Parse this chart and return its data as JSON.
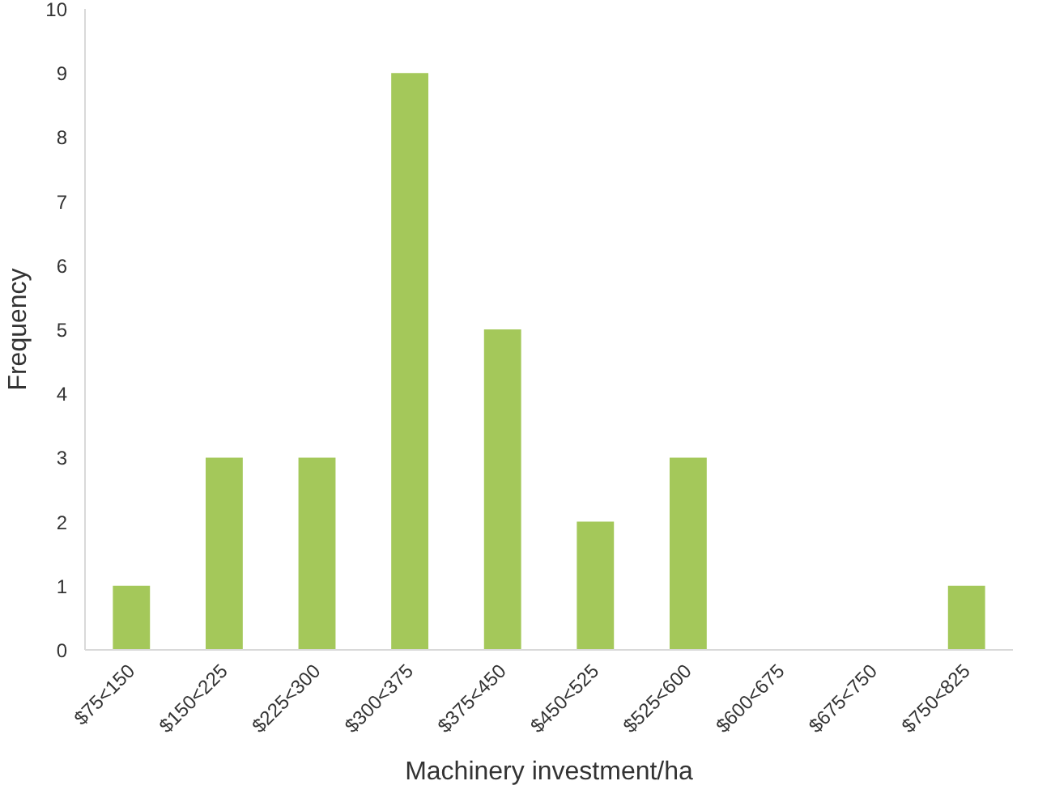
{
  "chart_data": {
    "type": "bar",
    "xlabel": "Machinery investment/ha",
    "ylabel": "Frequency",
    "categories": [
      "$75<150",
      "$150<225",
      "$225<300",
      "$300<375",
      "$375<450",
      "$450<525",
      "$525<600",
      "$600<675",
      "$675<750",
      "$750<825"
    ],
    "values": [
      1,
      3,
      3,
      9,
      5,
      2,
      3,
      0,
      0,
      1
    ],
    "color": "#a4c85a",
    "ylim": [
      0,
      10
    ],
    "yticks": [
      0,
      1,
      2,
      3,
      4,
      5,
      6,
      7,
      8,
      9,
      10
    ],
    "grid": false
  }
}
